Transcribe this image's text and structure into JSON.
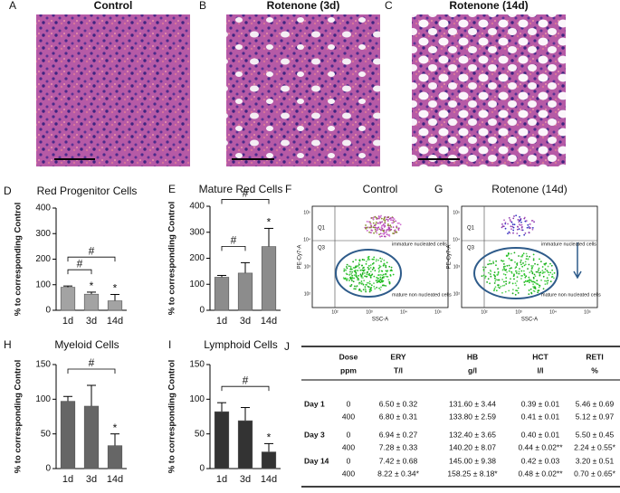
{
  "images": [
    {
      "letter": "A",
      "title": "Control"
    },
    {
      "letter": "B",
      "title": "Rotenone (3d)"
    },
    {
      "letter": "C",
      "title": "Rotenone (14d)"
    }
  ],
  "chart_data": [
    {
      "letter": "D",
      "type": "bar",
      "title": "Red Progenitor Cells",
      "y_label": "% to corresponding Control",
      "categories": [
        "1d",
        "3d",
        "14d"
      ],
      "values": [
        90,
        63,
        37
      ],
      "errors": [
        5,
        8,
        25
      ],
      "color": "#a3a3a3",
      "ylim": [
        0,
        400
      ],
      "yticks": [
        0,
        100,
        200,
        300,
        400
      ],
      "annotations": [
        {
          "category": "3d",
          "text": "*"
        },
        {
          "category": "14d",
          "text": "*"
        }
      ],
      "brackets": [
        {
          "from": "1d",
          "to": "3d",
          "text": "#"
        },
        {
          "from": "1d",
          "to": "14d",
          "text": "#"
        }
      ]
    },
    {
      "letter": "E",
      "type": "bar",
      "title": "Mature Red Cells",
      "y_label": "% to corresponding Control",
      "categories": [
        "1d",
        "3d",
        "14d"
      ],
      "values": [
        127,
        143,
        245
      ],
      "errors": [
        7,
        40,
        70
      ],
      "color": "#8c8c8c",
      "ylim": [
        0,
        400
      ],
      "yticks": [
        0,
        100,
        200,
        300,
        400
      ],
      "annotations": [
        {
          "category": "14d",
          "text": "*"
        }
      ],
      "brackets": [
        {
          "from": "1d",
          "to": "3d",
          "text": "#"
        },
        {
          "from": "1d",
          "to": "14d",
          "text": "#"
        }
      ]
    },
    {
      "letter": "H",
      "type": "bar",
      "title": "Myeloid Cells",
      "y_label": "% to corresponding Control",
      "categories": [
        "1d",
        "3d",
        "14d"
      ],
      "values": [
        97,
        90,
        33
      ],
      "errors": [
        7,
        30,
        17
      ],
      "color": "#666666",
      "ylim": [
        0,
        150
      ],
      "yticks": [
        0,
        50,
        100,
        150
      ],
      "annotations": [
        {
          "category": "14d",
          "text": "*"
        }
      ],
      "brackets": [
        {
          "from": "1d",
          "to": "14d",
          "text": "#"
        }
      ]
    },
    {
      "letter": "I",
      "type": "bar",
      "title": "Lymphoid Cells",
      "y_label": "% to corresponding Control",
      "categories": [
        "1d",
        "3d",
        "14d"
      ],
      "values": [
        82,
        69,
        24
      ],
      "errors": [
        13,
        19,
        12
      ],
      "color": "#333333",
      "ylim": [
        0,
        150
      ],
      "yticks": [
        0,
        50,
        100,
        150
      ],
      "annotations": [
        {
          "category": "14d",
          "text": "*"
        }
      ],
      "brackets": [
        {
          "from": "1d",
          "to": "14d",
          "text": "#"
        }
      ]
    }
  ],
  "flow": [
    {
      "letter": "F",
      "title": "Control",
      "q1": "Q1",
      "q3": "Q3",
      "upper_label": "immature nucleated cells",
      "lower_label": "mature non nucleated cells",
      "y_label": "PE-Cy7-A",
      "x_label": "SSC-A",
      "tick_labels": [
        "10²",
        "10³",
        "10⁴",
        "10⁵"
      ]
    },
    {
      "letter": "G",
      "title": "Rotenone (14d)",
      "q1": "Q1",
      "q3": "Q3",
      "upper_label": "immature nucleated cells",
      "lower_label": "mature non nucleated cells",
      "y_label": "PE-Cy7-A",
      "x_label": "SSC-A",
      "tick_labels": [
        "10²",
        "10³",
        "10⁴",
        "10⁵"
      ]
    }
  ],
  "table": {
    "letter": "J",
    "header": [
      [
        "Dose",
        "ERY",
        "HB",
        "HCT",
        "RETI"
      ],
      [
        "ppm",
        "T/l",
        "g/l",
        "l/l",
        "%"
      ]
    ],
    "groups": [
      {
        "label": "Day 1",
        "rows": [
          [
            "0",
            "6.50 ± 0.32",
            "131.60 ± 3.44",
            "0.39 ± 0.01",
            "5.46 ± 0.69"
          ],
          [
            "400",
            "6.80 ± 0.31",
            "133.80 ± 2.59",
            "0.41 ± 0.01",
            "5.12 ± 0.97"
          ]
        ]
      },
      {
        "label": "Day 3",
        "rows": [
          [
            "0",
            "6.94 ± 0.27",
            "132.40 ± 3.65",
            "0.40 ± 0.01",
            "5.50 ± 0.45"
          ],
          [
            "400",
            "7.28 ± 0.33",
            "140.20 ± 8.07",
            "0.44 ± 0.02**",
            "2.24 ± 0.55*"
          ]
        ]
      },
      {
        "label": "Day 14",
        "rows": [
          [
            "0",
            "7.42 ± 0.68",
            "145.00 ± 9.38",
            "0.42 ± 0.03",
            "3.20 ± 0.51"
          ],
          [
            "400",
            "8.22 ± 0.34*",
            "158.25 ± 8.18*",
            "0.48 ± 0.02**",
            "0.70 ± 0.65*"
          ]
        ]
      }
    ]
  }
}
